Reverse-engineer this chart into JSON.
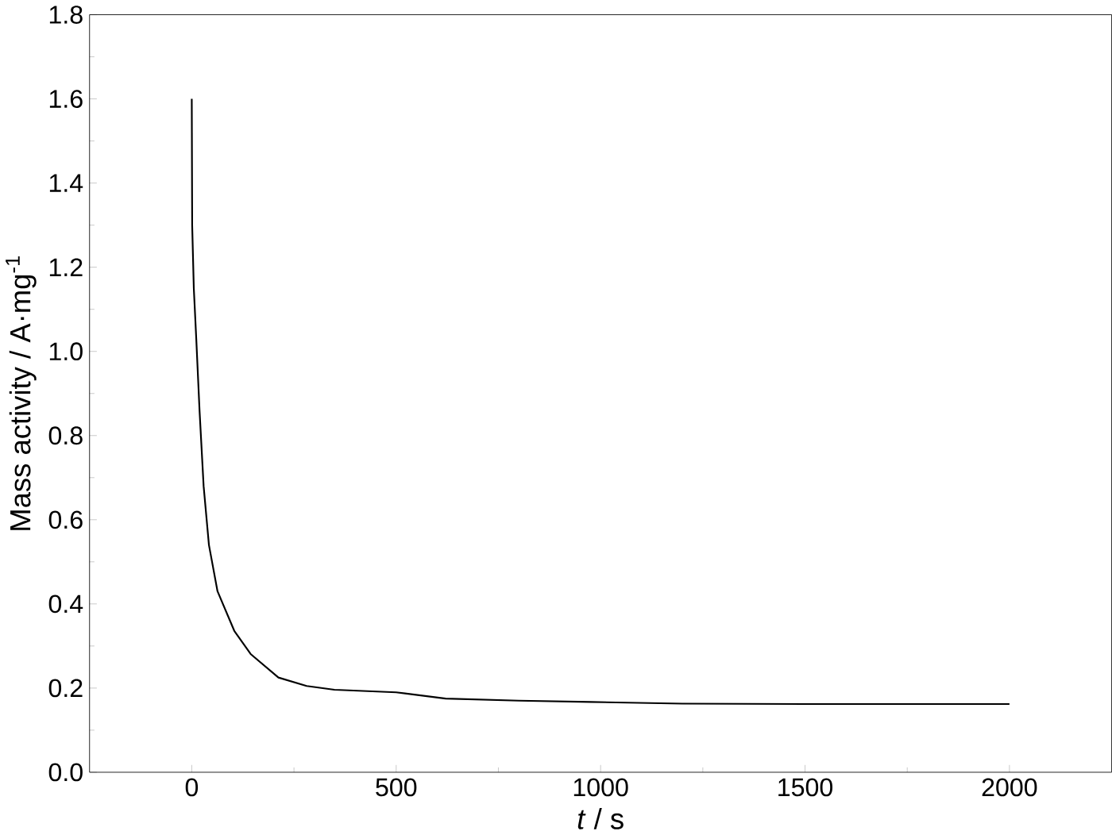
{
  "chart_data": {
    "type": "line",
    "xlabel": "*t* / s",
    "ylabel": "Mass activity / A·mg$^{-1}$",
    "xlim": [
      -250,
      2250
    ],
    "xticks": [
      0,
      500,
      1000,
      1500,
      2000
    ],
    "ylim": [
      0,
      1.8
    ],
    "yticks": [
      {
        "value": 0,
        "label": "0.0"
      },
      {
        "value": 0.2,
        "label": "0.2"
      },
      {
        "value": 0.4,
        "label": "0.4"
      },
      {
        "value": 0.6,
        "label": "0.6"
      },
      {
        "value": 0.8,
        "label": "0.8"
      },
      {
        "value": 1.0,
        "label": "1.0"
      },
      {
        "value": 1.2,
        "label": "1.2"
      },
      {
        "value": 1.4,
        "label": "1.4"
      },
      {
        "value": 1.6,
        "label": "1.6"
      },
      {
        "value": 1.8,
        "label": "1.8"
      }
    ],
    "marker": "none",
    "line_style": "solid",
    "series": [
      {
        "color": "#000000",
        "x": [
          0,
          1,
          5,
          11,
          19,
          29,
          42,
          63,
          104,
          144,
          212,
          281,
          349,
          500,
          621,
          800,
          975,
          1200,
          1500,
          1750,
          2000
        ],
        "values": [
          1.6,
          1.3,
          1.15,
          1.03,
          0.86,
          0.68,
          0.54,
          0.43,
          0.336,
          0.281,
          0.225,
          0.205,
          0.196,
          0.19,
          0.175,
          0.17,
          0.167,
          0.163,
          0.162,
          0.162,
          0.162
        ]
      }
    ]
  }
}
